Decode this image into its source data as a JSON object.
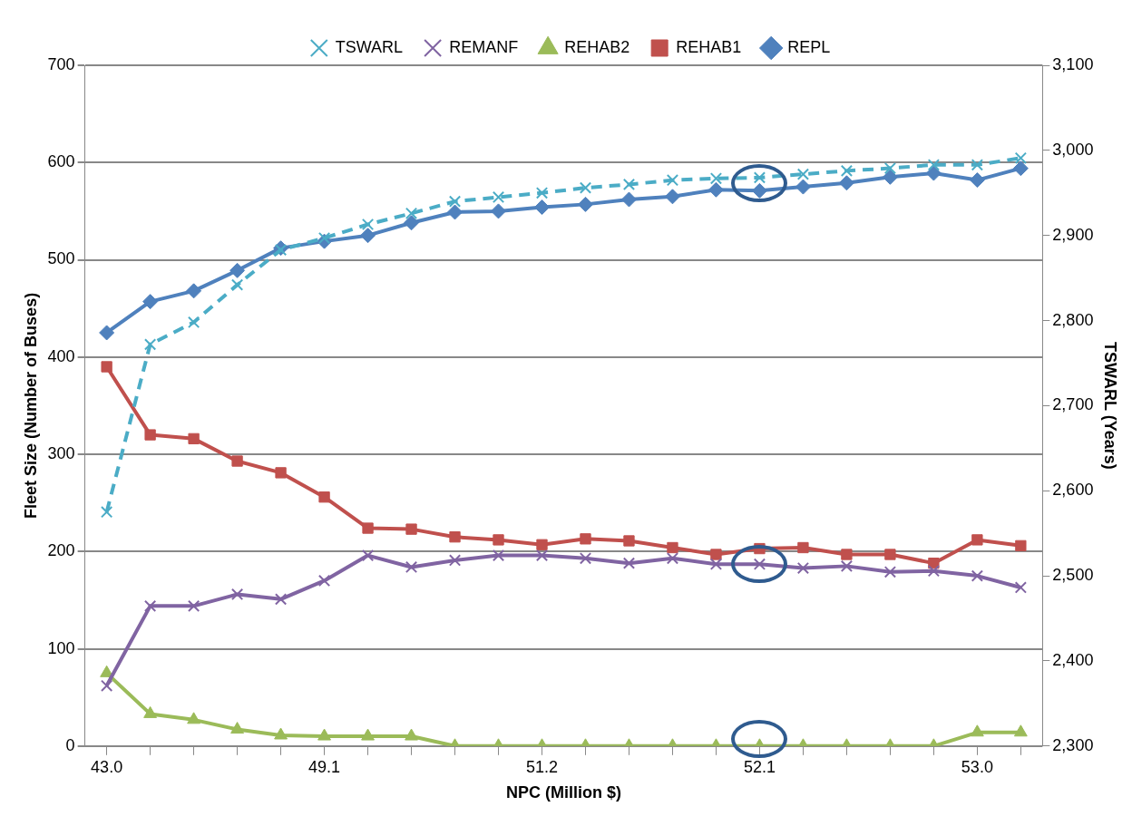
{
  "chart_data": {
    "type": "line",
    "xlabel": "NPC (Million $)",
    "ylabel": "Fleet Size (Number of Buses)",
    "y2label": "TSWARL (Years)",
    "categories": [
      "43.0",
      null,
      null,
      null,
      null,
      "49.1",
      null,
      null,
      null,
      null,
      "51.2",
      null,
      null,
      null,
      null,
      "52.1",
      null,
      null,
      null,
      null,
      "53.0",
      null
    ],
    "series": [
      {
        "name": "REPL",
        "color": "#4f81bd",
        "marker": "diamond",
        "line_style": "solid",
        "values": [
          425,
          457,
          468,
          489,
          512,
          519,
          525,
          538,
          549,
          550,
          554,
          557,
          562,
          565,
          572,
          571,
          575,
          579,
          585,
          589,
          582,
          594
        ]
      },
      {
        "name": "REHAB1",
        "color": "#c0504d",
        "marker": "square",
        "line_style": "solid",
        "values": [
          390,
          320,
          316,
          293,
          281,
          256,
          224,
          223,
          215,
          212,
          207,
          213,
          211,
          204,
          197,
          203,
          204,
          197,
          197,
          188,
          212,
          206
        ]
      },
      {
        "name": "REHAB2",
        "color": "#9bbb59",
        "marker": "triangle",
        "line_style": "solid",
        "values": [
          75,
          33,
          27,
          17,
          11,
          10,
          10,
          10,
          0,
          0,
          0,
          0,
          0,
          0,
          0,
          0,
          0,
          0,
          0,
          0,
          14,
          14
        ]
      },
      {
        "name": "REMANF",
        "color": "#8064a2",
        "marker": "cross",
        "line_style": "solid",
        "values": [
          62,
          144,
          144,
          156,
          151,
          170,
          196,
          184,
          191,
          196,
          196,
          193,
          188,
          193,
          187,
          187,
          183,
          185,
          179,
          180,
          175,
          163
        ]
      },
      {
        "name": "TSWARL",
        "color": "#4bacc6",
        "marker": "cross",
        "line_style": "dashed",
        "axis": "y2",
        "values": [
          2575,
          2772,
          2798,
          2842,
          2883,
          2897,
          2913,
          2926,
          2940,
          2945,
          2950,
          2956,
          2960,
          2965,
          2967,
          2968,
          2972,
          2976,
          2979,
          2983,
          2983,
          2991
        ]
      }
    ],
    "ylim": [
      0,
      700
    ],
    "yticks": [
      0,
      100,
      200,
      300,
      400,
      500,
      600,
      700
    ],
    "y2lim": [
      2300,
      3100
    ],
    "y2ticks": [
      {
        "value": 2300,
        "label": "2,300"
      },
      {
        "value": 2400,
        "label": "2,400"
      },
      {
        "value": 2500,
        "label": "2,500"
      },
      {
        "value": 2600,
        "label": "2,600"
      },
      {
        "value": 2700,
        "label": "2,700"
      },
      {
        "value": 2800,
        "label": "2,800"
      },
      {
        "value": 2900,
        "label": "2,900"
      },
      {
        "value": 3000,
        "label": "3,000"
      },
      {
        "value": 3100,
        "label": "3,100"
      }
    ],
    "grid": "y",
    "legend": "top"
  }
}
